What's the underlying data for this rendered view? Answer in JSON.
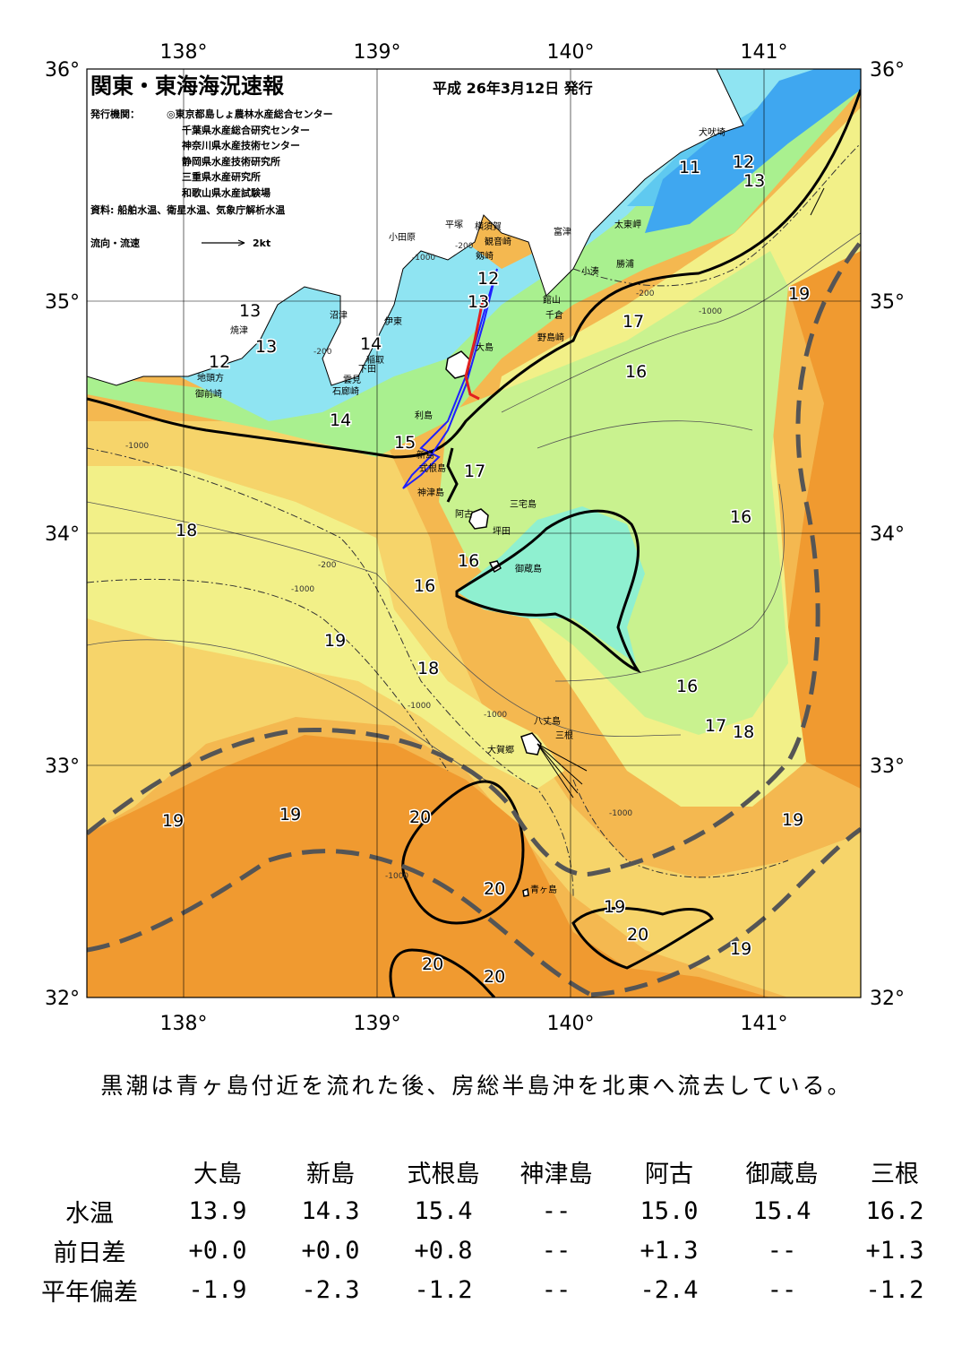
{
  "header": {
    "title": "関東・東海海況速報",
    "date": "平成 26年3月12日 発行",
    "issuer_label": "発行機関：",
    "issuers": [
      "◎東京都島しょ農林水産総合センター",
      "千葉県水産総合研究センター",
      "神奈川県水産技術センター",
      "静岡県水産技術研究所",
      "三重県水産研究所",
      "和歌山県水産試験場"
    ],
    "source": "資料: 船舶水温、衛星水温、気象庁解析水温",
    "legend_flow": "流向・流速",
    "legend_scale": "2kt"
  },
  "axes": {
    "lon_labels": [
      "138°",
      "139°",
      "140°",
      "141°"
    ],
    "lat_labels": [
      "36°",
      "35°",
      "34°",
      "33°",
      "32°"
    ],
    "lon": [
      138,
      139,
      140,
      141
    ],
    "lat": [
      36,
      35,
      34,
      33,
      32
    ],
    "lon_range": [
      137.5,
      141.5
    ],
    "lat_range": [
      32,
      36
    ]
  },
  "colors": {
    "t11": "#3fa7f0",
    "t12": "#5fc9f0",
    "t13": "#8fe4f2",
    "t14": "#9ff0c8",
    "t15": "#a9f08f",
    "t16": "#c9f28f",
    "t17": "#f2f088",
    "t18": "#f6d46a",
    "t19": "#f4b850",
    "t20": "#f09a30",
    "land": "#ffffff",
    "track": "#2020ff"
  },
  "place_names": [
    "犬吠埼",
    "太東岬",
    "勝浦",
    "小湊",
    "富津",
    "横須賀",
    "観音崎",
    "平塚",
    "剱崎",
    "小田原",
    "館山",
    "千倉",
    "野島崎",
    "沼津",
    "伊東",
    "焼津",
    "稲取",
    "下田",
    "地頭方",
    "御前崎",
    "雲見",
    "石廊崎",
    "大島",
    "利島",
    "新島",
    "式根島",
    "神津島",
    "三宅島",
    "阿古",
    "坪田",
    "御蔵島",
    "八丈島",
    "三根",
    "大賀郷",
    "青ヶ島"
  ],
  "isotherm_labels": [
    "11",
    "12",
    "13",
    "13",
    "12",
    "13",
    "13",
    "12",
    "14",
    "14",
    "15",
    "17",
    "16",
    "17",
    "16",
    "18",
    "16",
    "16",
    "19",
    "18",
    "16",
    "17",
    "18",
    "19",
    "19",
    "20",
    "20",
    "19",
    "20",
    "19",
    "19",
    "20",
    "20",
    "19"
  ],
  "depth_labels": [
    "-200",
    "-1000",
    "-200",
    "-1000",
    "-200",
    "-1000",
    "-1000",
    "-1000",
    "-200",
    "-1000",
    "-1000",
    "-1000"
  ],
  "summary": "黒潮は青ヶ島付近を流れた後、房総半島沖を北東へ流去している。",
  "table": {
    "stations": [
      "大島",
      "新島",
      "式根島",
      "神津島",
      "阿古",
      "御蔵島",
      "三根"
    ],
    "rows": [
      {
        "label": "水温",
        "values": [
          "13.9",
          "14.3",
          "15.4",
          "--",
          "15.0",
          "15.4",
          "16.2"
        ]
      },
      {
        "label": "前日差",
        "values": [
          "+0.0",
          "+0.0",
          "+0.8",
          "--",
          "+1.3",
          "--",
          "+1.3"
        ]
      },
      {
        "label": "平年偏差",
        "values": [
          "-1.9",
          "-2.3",
          "-1.2",
          "--",
          "-2.4",
          "--",
          "-1.2"
        ]
      }
    ]
  }
}
